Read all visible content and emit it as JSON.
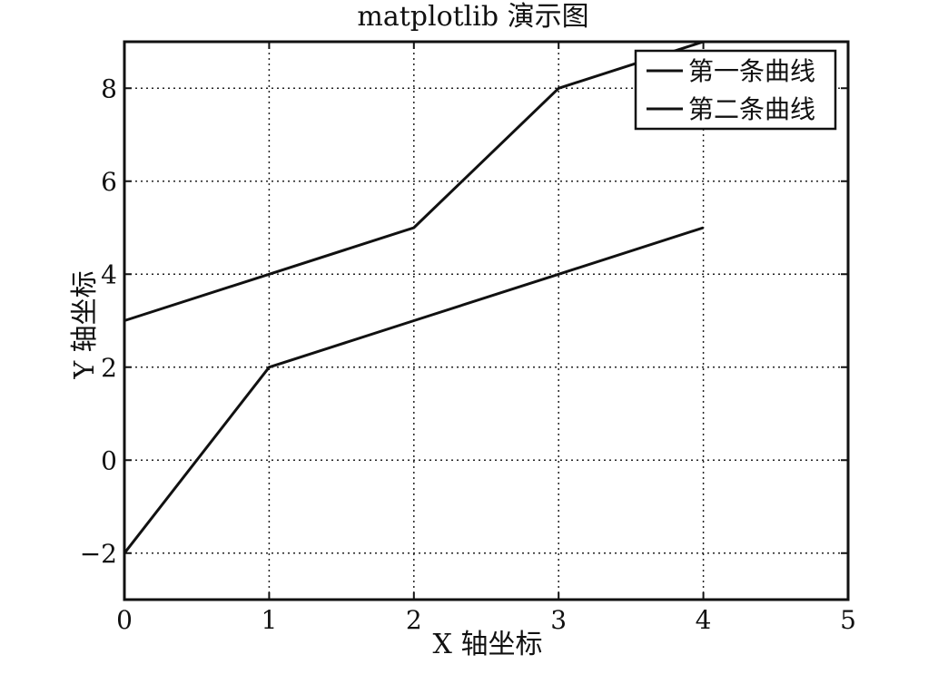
{
  "chart_data": {
    "type": "line",
    "title": "matplotlib 演示图",
    "xlabel": "X 轴坐标",
    "ylabel": "Y 轴坐标",
    "xlim": [
      0,
      5
    ],
    "ylim": [
      -3,
      9
    ],
    "xticks": [
      0,
      1,
      2,
      3,
      4,
      5
    ],
    "yticks": [
      -2,
      0,
      2,
      4,
      6,
      8
    ],
    "xtick_labels": [
      "0",
      "1",
      "2",
      "3",
      "4",
      "5"
    ],
    "ytick_labels": [
      "−2",
      "0",
      "2",
      "4",
      "6",
      "8"
    ],
    "grid": true,
    "legend_position": "top-right",
    "series": [
      {
        "name": "第一条曲线",
        "x": [
          0,
          1,
          2,
          3,
          4
        ],
        "y": [
          3,
          4,
          5,
          8,
          9
        ],
        "color": "#111111"
      },
      {
        "name": "第二条曲线",
        "x": [
          0,
          1,
          2,
          3,
          4
        ],
        "y": [
          -2,
          2,
          3,
          4,
          5
        ],
        "color": "#111111"
      }
    ]
  }
}
